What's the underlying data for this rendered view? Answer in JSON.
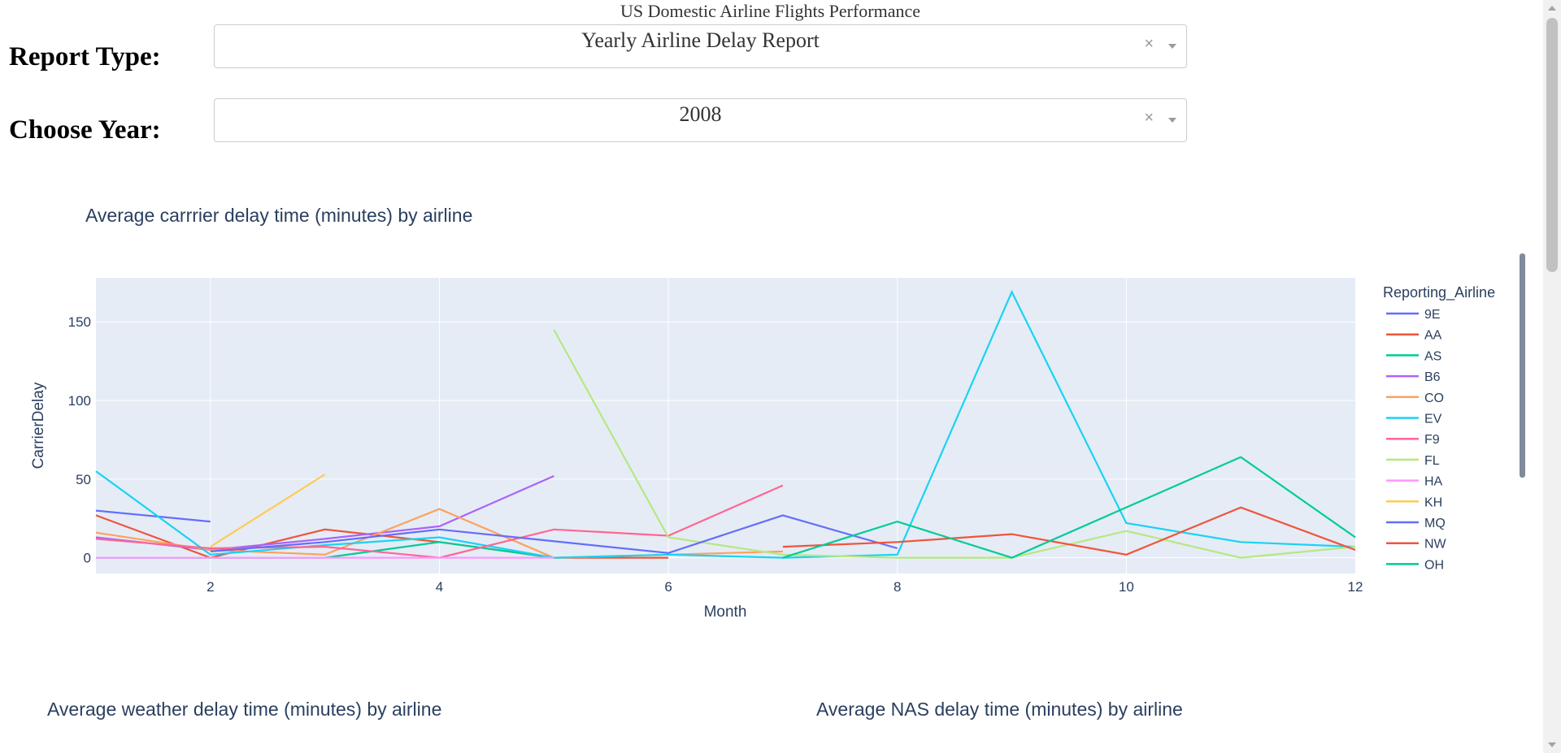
{
  "header": {
    "title": "US Domestic Airline Flights Performance"
  },
  "controls": {
    "report_type": {
      "label": "Report Type:",
      "value": "Yearly Airline Delay Report",
      "clear": "×"
    },
    "year": {
      "label": "Choose Year:",
      "value": "2008",
      "clear": "×"
    }
  },
  "charts": {
    "carrier_title": "Average carrrier delay time (minutes) by airline",
    "weather_title": "Average weather delay time (minutes) by airline",
    "nas_title": "Average NAS delay time (minutes) by airline"
  },
  "chart_data": {
    "type": "line",
    "title": "Average carrrier delay time (minutes) by airline",
    "xlabel": "Month",
    "ylabel": "CarrierDelay",
    "xlim": [
      1,
      12
    ],
    "ylim": [
      -10,
      178
    ],
    "xticks": [
      2,
      4,
      6,
      8,
      10,
      12
    ],
    "yticks": [
      0,
      50,
      100,
      150
    ],
    "grid": true,
    "legend_title": "Reporting_Airline",
    "legend_position": "right",
    "series": [
      {
        "name": "9E",
        "color": "#636efa",
        "points": [
          [
            1,
            30
          ],
          [
            2,
            23
          ]
        ]
      },
      {
        "name": "AA",
        "color": "#ef553b",
        "points": [
          [
            1,
            27
          ],
          [
            2,
            0
          ],
          [
            3,
            18
          ],
          [
            4,
            10
          ],
          [
            5,
            0
          ],
          [
            6,
            0
          ]
        ]
      },
      {
        "name": "AS",
        "color": "#00cc96",
        "points": [
          [
            1,
            0
          ],
          [
            2,
            0
          ],
          [
            3,
            0
          ],
          [
            4,
            10
          ],
          [
            5,
            0
          ]
        ]
      },
      {
        "name": "B6",
        "color": "#ab63fa",
        "points": [
          [
            1,
            13
          ],
          [
            2,
            5
          ],
          [
            3,
            12
          ],
          [
            4,
            20
          ],
          [
            5,
            52
          ]
        ]
      },
      {
        "name": "CO",
        "color": "#ffa15a",
        "points": [
          [
            1,
            16
          ],
          [
            2,
            5
          ],
          [
            3,
            2
          ],
          [
            4,
            31
          ],
          [
            5,
            0
          ],
          [
            6,
            2
          ],
          [
            7,
            4
          ]
        ]
      },
      {
        "name": "EV",
        "color": "#19d3f3",
        "points": [
          [
            1,
            55
          ],
          [
            2,
            2
          ],
          [
            3,
            8
          ],
          [
            4,
            13
          ],
          [
            5,
            0
          ],
          [
            6,
            2
          ],
          [
            7,
            0
          ],
          [
            8,
            2
          ],
          [
            9,
            169
          ],
          [
            10,
            22
          ],
          [
            11,
            10
          ],
          [
            12,
            7
          ]
        ]
      },
      {
        "name": "F9",
        "color": "#ff6692",
        "points": [
          [
            1,
            12
          ],
          [
            2,
            6
          ],
          [
            3,
            7
          ],
          [
            4,
            0
          ],
          [
            5,
            18
          ],
          [
            6,
            14
          ],
          [
            7,
            46
          ]
        ]
      },
      {
        "name": "FL",
        "color": "#b6e880",
        "points": [
          [
            5,
            145
          ],
          [
            6,
            13
          ],
          [
            7,
            2
          ],
          [
            8,
            0
          ],
          [
            9,
            0
          ],
          [
            10,
            17
          ],
          [
            11,
            0
          ],
          [
            12,
            7
          ]
        ]
      },
      {
        "name": "HA",
        "color": "#ff97ff",
        "points": [
          [
            1,
            0
          ],
          [
            2,
            0
          ],
          [
            3,
            0
          ],
          [
            4,
            0
          ],
          [
            5,
            0
          ]
        ]
      },
      {
        "name": "KH",
        "color": "#fecb52",
        "points": [
          [
            2,
            7
          ],
          [
            3,
            53
          ]
        ]
      },
      {
        "name": "MQ",
        "color": "#636efa",
        "points": [
          [
            2,
            4
          ],
          [
            3,
            10
          ],
          [
            4,
            18
          ],
          [
            6,
            3
          ],
          [
            7,
            27
          ],
          [
            8,
            6
          ]
        ]
      },
      {
        "name": "NW",
        "color": "#ef553b",
        "points": [
          [
            7,
            7
          ],
          [
            8,
            10
          ],
          [
            9,
            15
          ],
          [
            10,
            2
          ],
          [
            11,
            32
          ],
          [
            12,
            5
          ]
        ]
      },
      {
        "name": "OH",
        "color": "#00cc96",
        "points": [
          [
            7,
            0
          ],
          [
            8,
            23
          ],
          [
            9,
            0
          ],
          [
            11,
            64
          ],
          [
            12,
            13
          ]
        ]
      }
    ]
  }
}
